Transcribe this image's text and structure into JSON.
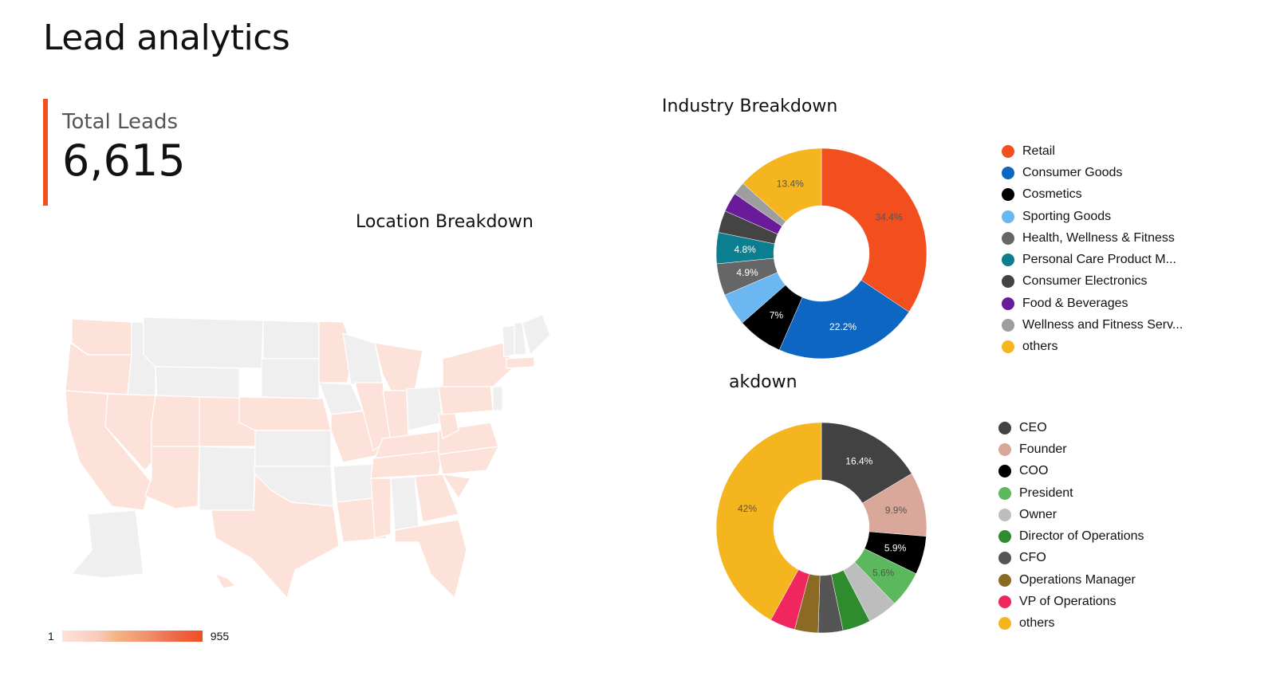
{
  "page": {
    "title": "Lead analytics"
  },
  "kpi": {
    "label": "Total Leads",
    "value": "6,615"
  },
  "location": {
    "title": "Location Breakdown",
    "scale_min": "1",
    "scale_max": "955",
    "low_color": "#fde2d9",
    "high_color": "#f24e1e",
    "no_data_color": "#efefef"
  },
  "chart_data": [
    {
      "type": "pie",
      "title": "Industry Breakdown",
      "categories": [
        "Retail",
        "Consumer Goods",
        "Cosmetics",
        "Sporting Goods",
        "Health, Wellness & Fitness",
        "Personal Care Product M...",
        "Consumer Electronics",
        "Food & Beverages",
        "Wellness and Fitness Serv...",
        "others"
      ],
      "values": [
        34.4,
        22.2,
        7.0,
        5.0,
        4.9,
        4.8,
        3.4,
        3.0,
        2.0,
        13.4
      ],
      "labels": [
        "34.4%",
        "22.2%",
        "7%",
        "",
        "4.9%",
        "4.8%",
        "",
        "",
        "",
        "13.4%"
      ],
      "colors": [
        "#f24e1e",
        "#0d66c2",
        "#000000",
        "#6ab7f2",
        "#666666",
        "#0b7f8f",
        "#444444",
        "#6a1b9a",
        "#9e9e9e",
        "#f5b51f"
      ],
      "legend": "right"
    },
    {
      "type": "pie",
      "title": "akdown",
      "categories": [
        "CEO",
        "Founder",
        "COO",
        "President",
        "Owner",
        "Director of Operations",
        "CFO",
        "Operations Manager",
        "VP of Operations",
        "others"
      ],
      "values": [
        16.4,
        9.9,
        5.9,
        5.6,
        4.6,
        4.3,
        3.8,
        3.6,
        3.9,
        42.0
      ],
      "labels": [
        "16.4%",
        "9.9%",
        "5.9%",
        "5.6%",
        "",
        "",
        "",
        "",
        "",
        "42%"
      ],
      "colors": [
        "#424242",
        "#d9a89b",
        "#000000",
        "#5cb85c",
        "#bdbdbd",
        "#2e8b2e",
        "#555555",
        "#8b6b23",
        "#f0275e",
        "#f5b51f"
      ],
      "legend": "right"
    }
  ]
}
